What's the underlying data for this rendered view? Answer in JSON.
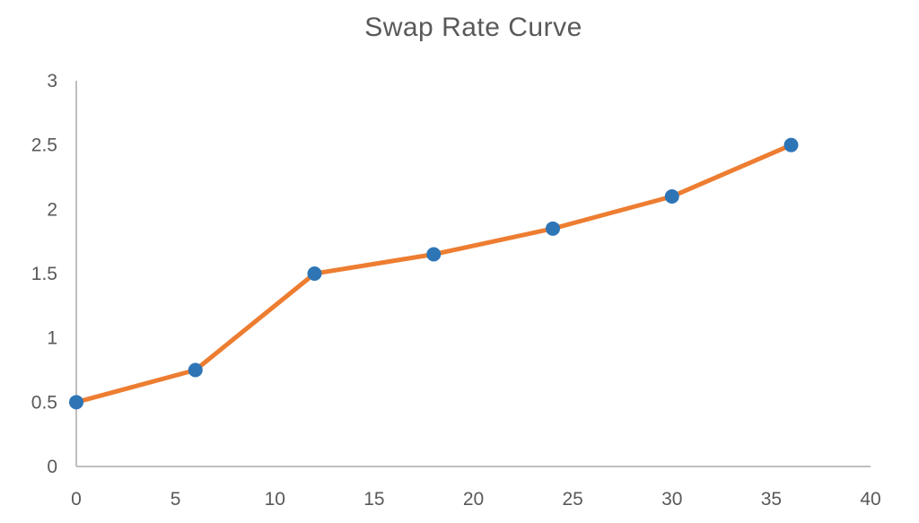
{
  "chart": {
    "title": "Swap Rate Curve"
  },
  "chart_data": {
    "type": "line",
    "title": "Swap Rate Curve",
    "x": [
      0,
      6,
      12,
      18,
      24,
      30,
      36
    ],
    "y": [
      0.5,
      0.75,
      1.5,
      1.65,
      1.85,
      2.1,
      2.5
    ],
    "x_tick_labels": [
      "0",
      "5",
      "10",
      "15",
      "20",
      "25",
      "30",
      "35",
      "40"
    ],
    "x_tick_values": [
      0,
      5,
      10,
      15,
      20,
      25,
      30,
      35,
      40
    ],
    "y_tick_labels": [
      "0",
      "0.5",
      "1",
      "1.5",
      "2",
      "2.5",
      "3"
    ],
    "y_tick_values": [
      0,
      0.5,
      1,
      1.5,
      2,
      2.5,
      3
    ],
    "xlim": [
      0,
      40
    ],
    "ylim": [
      0,
      3
    ],
    "xlabel": "",
    "ylabel": "",
    "grid": false,
    "legend": "none",
    "colors": {
      "line": "#ED7D31",
      "marker": "#2E75B6",
      "axis": "#BFBFBF",
      "tick_label": "#595959",
      "title": "#595959"
    }
  }
}
